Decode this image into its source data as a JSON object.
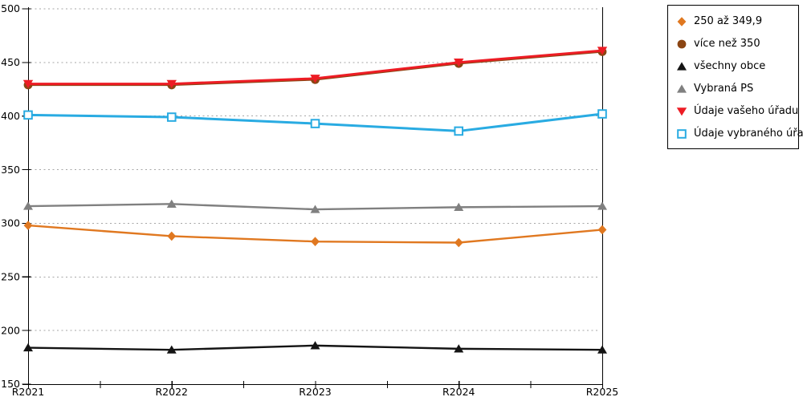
{
  "chart_data": {
    "type": "line",
    "categories": [
      "R2021",
      "R2022",
      "R2023",
      "R2024",
      "R2025"
    ],
    "series": [
      {
        "name": "250 až 349,9",
        "marker": "diamond",
        "color": "#E07820",
        "values": [
          298,
          288,
          283,
          282,
          294
        ]
      },
      {
        "name": "více než 350",
        "marker": "circle",
        "color": "#8B4513",
        "values": [
          429,
          429,
          434,
          449,
          460
        ]
      },
      {
        "name": "všechny obce",
        "marker": "triangle-up",
        "color": "#141414",
        "values": [
          184,
          182,
          186,
          183,
          182
        ]
      },
      {
        "name": "Vybraná PS",
        "marker": "triangle-up",
        "color": "#808080",
        "values": [
          316,
          318,
          313,
          315,
          316
        ]
      },
      {
        "name": "Údaje vašeho úřadu",
        "marker": "triangle-down",
        "color": "#ED1C24",
        "values": [
          430,
          430,
          435,
          450,
          461
        ]
      },
      {
        "name": "Údaje vybraného úřadu",
        "marker": "square-open",
        "color": "#29ABE2",
        "values": [
          401,
          399,
          393,
          386,
          402
        ]
      }
    ],
    "title": "",
    "xlabel": "",
    "ylabel": "",
    "ylim": [
      150,
      500
    ],
    "ytick_step": 50,
    "grid": true,
    "legend_position": "right"
  },
  "axes": {
    "y_ticks": [
      "150",
      "200",
      "250",
      "300",
      "350",
      "400",
      "450",
      "500"
    ],
    "x_ticks": [
      "R2021",
      "R2022",
      "R2023",
      "R2024",
      "R2025"
    ]
  },
  "colors": {
    "background": "#FFFFFF",
    "grid": "#A6A6A6",
    "axis": "#000000",
    "legend_border": "#000000",
    "tick_label": "#000000"
  }
}
